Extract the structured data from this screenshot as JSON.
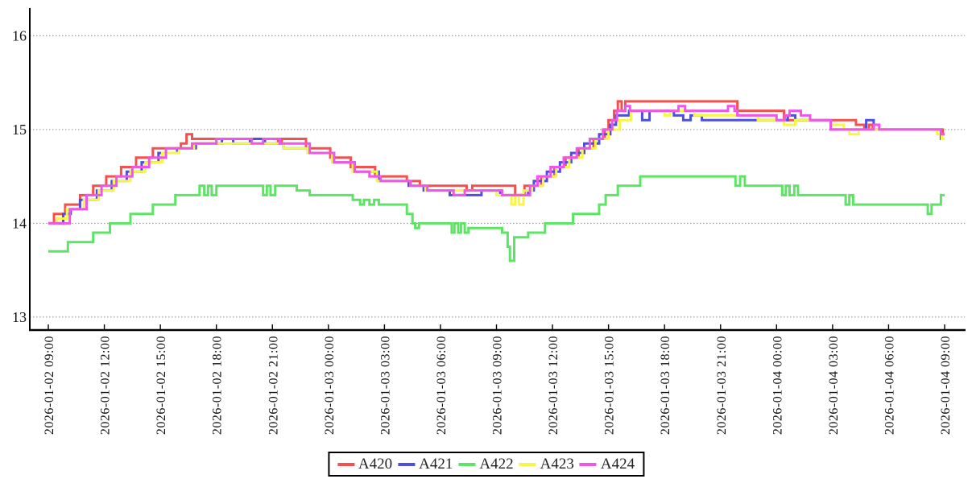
{
  "chart_data": {
    "type": "line",
    "step": true,
    "title": "",
    "xlabel": "",
    "ylabel": "",
    "grid": true,
    "legend_position": "bottom-center",
    "x_unit": "hours since 2026-01-02 09:00",
    "x_range_hours": [
      0,
      48
    ],
    "ylim": [
      12.87,
      16.29
    ],
    "y_ticks": [
      {
        "value": 13,
        "label": "13"
      },
      {
        "value": 14,
        "label": "14"
      },
      {
        "value": 15,
        "label": "15"
      },
      {
        "value": 16,
        "label": "16"
      }
    ],
    "x_tick_interval_hours": 3,
    "x_tick_labels": [
      "2026-01-02 09:00",
      "2026-01-02 12:00",
      "2026-01-02 15:00",
      "2026-01-02 18:00",
      "2026-01-02 21:00",
      "2026-01-03 00:00",
      "2026-01-03 03:00",
      "2026-01-03 06:00",
      "2026-01-03 09:00",
      "2026-01-03 12:00",
      "2026-01-03 15:00",
      "2026-01-03 18:00",
      "2026-01-03 21:00",
      "2026-01-04 00:00",
      "2026-01-04 03:00",
      "2026-01-04 06:00",
      "2026-01-04 09:00"
    ],
    "colors": {
      "axis": "#000000",
      "grid": "#8a8a8a",
      "text": "#111111"
    },
    "series": [
      {
        "name": "A420",
        "color": "#f4514e",
        "points": [
          [
            0,
            14.0
          ],
          [
            0.3,
            14.1
          ],
          [
            0.9,
            14.2
          ],
          [
            1.7,
            14.3
          ],
          [
            2.4,
            14.4
          ],
          [
            3.1,
            14.5
          ],
          [
            3.9,
            14.6
          ],
          [
            4.7,
            14.7
          ],
          [
            5.6,
            14.8
          ],
          [
            7.1,
            14.85
          ],
          [
            7.4,
            14.95
          ],
          [
            7.7,
            14.9
          ],
          [
            12.3,
            14.85
          ],
          [
            12.5,
            14.9
          ],
          [
            13.8,
            14.8
          ],
          [
            15.1,
            14.7
          ],
          [
            16.2,
            14.6
          ],
          [
            17.5,
            14.5
          ],
          [
            19.2,
            14.45
          ],
          [
            19.9,
            14.4
          ],
          [
            22.4,
            14.35
          ],
          [
            22.7,
            14.4
          ],
          [
            25.0,
            14.3
          ],
          [
            25.5,
            14.4
          ],
          [
            26.4,
            14.5
          ],
          [
            27.1,
            14.6
          ],
          [
            27.7,
            14.7
          ],
          [
            28.4,
            14.8
          ],
          [
            29.2,
            14.9
          ],
          [
            29.8,
            15.0
          ],
          [
            30.0,
            15.1
          ],
          [
            30.3,
            15.2
          ],
          [
            30.5,
            15.3
          ],
          [
            30.7,
            15.2
          ],
          [
            30.9,
            15.3
          ],
          [
            36.9,
            15.2
          ],
          [
            39.4,
            15.1
          ],
          [
            43.25,
            15.05
          ],
          [
            43.7,
            15.0
          ],
          [
            43.95,
            15.05
          ],
          [
            44.15,
            15.0
          ],
          [
            47.9,
            14.95
          ],
          [
            48,
            14.95
          ]
        ]
      },
      {
        "name": "A421",
        "color": "#4f4fdf",
        "points": [
          [
            0,
            14.0
          ],
          [
            0.8,
            14.1
          ],
          [
            1.2,
            14.15
          ],
          [
            1.7,
            14.25
          ],
          [
            2.6,
            14.35
          ],
          [
            3.4,
            14.45
          ],
          [
            4.2,
            14.55
          ],
          [
            5.0,
            14.65
          ],
          [
            5.9,
            14.75
          ],
          [
            6.9,
            14.8
          ],
          [
            7.9,
            14.85
          ],
          [
            9.3,
            14.9
          ],
          [
            9.9,
            14.85
          ],
          [
            10.8,
            14.9
          ],
          [
            11.6,
            14.85
          ],
          [
            12.6,
            14.8
          ],
          [
            13.9,
            14.75
          ],
          [
            15.3,
            14.65
          ],
          [
            16.4,
            14.55
          ],
          [
            17.7,
            14.45
          ],
          [
            19.3,
            14.4
          ],
          [
            20.1,
            14.35
          ],
          [
            21.5,
            14.3
          ],
          [
            23.2,
            14.35
          ],
          [
            24.2,
            14.3
          ],
          [
            25.7,
            14.35
          ],
          [
            26.0,
            14.45
          ],
          [
            26.7,
            14.55
          ],
          [
            27.4,
            14.65
          ],
          [
            28.0,
            14.75
          ],
          [
            28.7,
            14.85
          ],
          [
            29.5,
            14.95
          ],
          [
            30.1,
            15.05
          ],
          [
            30.4,
            15.15
          ],
          [
            31.1,
            15.2
          ],
          [
            31.8,
            15.1
          ],
          [
            32.2,
            15.2
          ],
          [
            33.5,
            15.15
          ],
          [
            34.0,
            15.1
          ],
          [
            34.4,
            15.15
          ],
          [
            35.0,
            15.1
          ],
          [
            39.6,
            15.15
          ],
          [
            40.0,
            15.1
          ],
          [
            41.9,
            15.0
          ],
          [
            43.8,
            15.1
          ],
          [
            44.2,
            15.0
          ],
          [
            47.8,
            14.9
          ],
          [
            48,
            14.9
          ]
        ]
      },
      {
        "name": "A422",
        "color": "#5ee465",
        "points": [
          [
            0,
            13.7
          ],
          [
            1.05,
            13.8
          ],
          [
            2.4,
            13.9
          ],
          [
            3.3,
            14.0
          ],
          [
            4.4,
            14.1
          ],
          [
            5.6,
            14.2
          ],
          [
            6.8,
            14.3
          ],
          [
            8.1,
            14.4
          ],
          [
            8.35,
            14.3
          ],
          [
            8.55,
            14.4
          ],
          [
            8.75,
            14.3
          ],
          [
            9.0,
            14.4
          ],
          [
            11.5,
            14.3
          ],
          [
            11.7,
            14.4
          ],
          [
            11.9,
            14.3
          ],
          [
            12.15,
            14.4
          ],
          [
            13.3,
            14.35
          ],
          [
            14.0,
            14.3
          ],
          [
            16.3,
            14.25
          ],
          [
            16.7,
            14.2
          ],
          [
            16.9,
            14.25
          ],
          [
            17.2,
            14.2
          ],
          [
            17.45,
            14.25
          ],
          [
            17.7,
            14.2
          ],
          [
            19.2,
            14.1
          ],
          [
            19.5,
            14.0
          ],
          [
            19.65,
            13.95
          ],
          [
            19.85,
            14.0
          ],
          [
            21.6,
            13.9
          ],
          [
            21.75,
            14.0
          ],
          [
            21.95,
            13.9
          ],
          [
            22.1,
            14.0
          ],
          [
            22.3,
            13.9
          ],
          [
            22.5,
            13.95
          ],
          [
            24.3,
            13.9
          ],
          [
            24.6,
            13.75
          ],
          [
            24.72,
            13.6
          ],
          [
            24.95,
            13.85
          ],
          [
            25.7,
            13.9
          ],
          [
            26.6,
            14.0
          ],
          [
            28.1,
            14.1
          ],
          [
            29.5,
            14.2
          ],
          [
            29.85,
            14.3
          ],
          [
            30.5,
            14.4
          ],
          [
            31.7,
            14.5
          ],
          [
            36.8,
            14.4
          ],
          [
            37.05,
            14.5
          ],
          [
            37.3,
            14.4
          ],
          [
            39.3,
            14.3
          ],
          [
            39.5,
            14.4
          ],
          [
            39.7,
            14.3
          ],
          [
            39.95,
            14.4
          ],
          [
            40.15,
            14.3
          ],
          [
            42.7,
            14.2
          ],
          [
            42.9,
            14.3
          ],
          [
            43.1,
            14.2
          ],
          [
            47.1,
            14.1
          ],
          [
            47.3,
            14.2
          ],
          [
            47.8,
            14.3
          ],
          [
            48,
            14.3
          ]
        ]
      },
      {
        "name": "A423",
        "color": "#f6f64a",
        "points": [
          [
            0,
            14.0
          ],
          [
            0.45,
            14.05
          ],
          [
            1.0,
            14.15
          ],
          [
            1.9,
            14.25
          ],
          [
            2.7,
            14.35
          ],
          [
            3.5,
            14.45
          ],
          [
            4.4,
            14.55
          ],
          [
            5.2,
            14.65
          ],
          [
            6.1,
            14.75
          ],
          [
            7.0,
            14.8
          ],
          [
            7.8,
            14.85
          ],
          [
            12.6,
            14.8
          ],
          [
            13.9,
            14.75
          ],
          [
            15.2,
            14.65
          ],
          [
            16.3,
            14.55
          ],
          [
            17.6,
            14.45
          ],
          [
            19.4,
            14.4
          ],
          [
            20.2,
            14.35
          ],
          [
            24.0,
            14.3
          ],
          [
            24.8,
            14.2
          ],
          [
            25.0,
            14.3
          ],
          [
            25.2,
            14.2
          ],
          [
            25.45,
            14.35
          ],
          [
            25.9,
            14.4
          ],
          [
            26.5,
            14.5
          ],
          [
            27.2,
            14.6
          ],
          [
            27.9,
            14.7
          ],
          [
            28.6,
            14.8
          ],
          [
            29.3,
            14.9
          ],
          [
            30.0,
            15.0
          ],
          [
            30.6,
            15.1
          ],
          [
            31.2,
            15.2
          ],
          [
            33.0,
            15.15
          ],
          [
            33.3,
            15.2
          ],
          [
            34.6,
            15.15
          ],
          [
            38.0,
            15.1
          ],
          [
            39.4,
            15.05
          ],
          [
            40.0,
            15.1
          ],
          [
            41.9,
            15.05
          ],
          [
            42.6,
            15.0
          ],
          [
            42.9,
            14.95
          ],
          [
            43.4,
            15.0
          ],
          [
            47.6,
            14.95
          ],
          [
            47.85,
            14.9
          ],
          [
            48,
            14.9
          ]
        ]
      },
      {
        "name": "A424",
        "color": "#ef55e8",
        "points": [
          [
            0,
            14.0
          ],
          [
            1.15,
            14.15
          ],
          [
            2.05,
            14.3
          ],
          [
            2.85,
            14.4
          ],
          [
            3.65,
            14.5
          ],
          [
            4.5,
            14.6
          ],
          [
            5.4,
            14.7
          ],
          [
            6.3,
            14.8
          ],
          [
            7.7,
            14.85
          ],
          [
            9.0,
            14.9
          ],
          [
            10.9,
            14.85
          ],
          [
            11.5,
            14.9
          ],
          [
            12.4,
            14.85
          ],
          [
            14.0,
            14.75
          ],
          [
            15.3,
            14.65
          ],
          [
            16.4,
            14.55
          ],
          [
            17.2,
            14.5
          ],
          [
            17.8,
            14.45
          ],
          [
            19.4,
            14.4
          ],
          [
            20.3,
            14.35
          ],
          [
            21.7,
            14.3
          ],
          [
            22.3,
            14.35
          ],
          [
            24.3,
            14.3
          ],
          [
            25.8,
            14.4
          ],
          [
            26.2,
            14.5
          ],
          [
            26.9,
            14.6
          ],
          [
            27.6,
            14.7
          ],
          [
            28.3,
            14.8
          ],
          [
            29.0,
            14.9
          ],
          [
            29.7,
            15.0
          ],
          [
            30.2,
            15.1
          ],
          [
            30.45,
            15.2
          ],
          [
            30.9,
            15.25
          ],
          [
            31.15,
            15.2
          ],
          [
            33.75,
            15.25
          ],
          [
            34.1,
            15.2
          ],
          [
            36.4,
            15.25
          ],
          [
            36.75,
            15.2
          ],
          [
            36.9,
            15.15
          ],
          [
            39.0,
            15.1
          ],
          [
            39.45,
            15.15
          ],
          [
            39.7,
            15.2
          ],
          [
            40.3,
            15.15
          ],
          [
            40.8,
            15.1
          ],
          [
            41.9,
            15.0
          ],
          [
            44.2,
            15.05
          ],
          [
            44.5,
            15.0
          ],
          [
            47.8,
            14.95
          ],
          [
            48,
            14.95
          ]
        ]
      }
    ]
  }
}
